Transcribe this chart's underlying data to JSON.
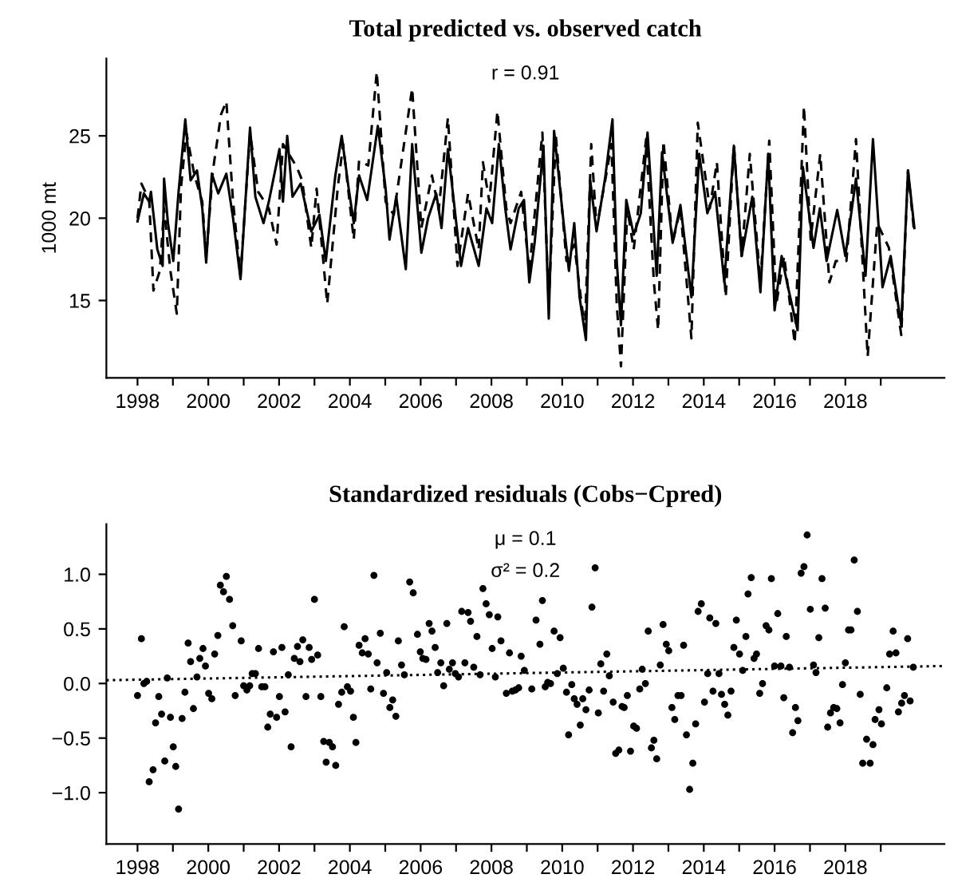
{
  "chart_data": [
    {
      "type": "line",
      "title": "Total predicted vs. observed catch",
      "ylabel": "1000 mt",
      "annotations": [
        "r = 0.91"
      ],
      "xlim": [
        1997.12,
        2020.8
      ],
      "ylim": [
        10.3,
        29.7
      ],
      "xticks": [
        1998,
        {
          "value": 1999,
          "label": null
        },
        2000,
        {
          "value": 2001,
          "label": null
        },
        2002,
        {
          "value": 2003,
          "label": null
        },
        2004,
        {
          "value": 2005,
          "label": null
        },
        2006,
        {
          "value": 2007,
          "label": null
        },
        2008,
        {
          "value": 2009,
          "label": null
        },
        2010,
        {
          "value": 2011,
          "label": null
        },
        2012,
        {
          "value": 2013,
          "label": null
        },
        2014,
        {
          "value": 2015,
          "label": null
        },
        2016,
        {
          "value": 2017,
          "label": null
        },
        2018,
        {
          "value": 2019,
          "label": null
        }
      ],
      "yticks": [
        15,
        20,
        25
      ],
      "series": [
        {
          "color": "#000000",
          "line_style": "solid",
          "x": [
            1998.0,
            1998.18,
            1998.33,
            1998.38,
            1998.56,
            1998.71,
            1998.75,
            1998.86,
            1999.01,
            1999.16,
            1999.35,
            1999.5,
            1999.68,
            1999.83,
            1999.94,
            2000.1,
            2000.28,
            2000.51,
            2000.7,
            2000.91,
            2001.18,
            2001.33,
            2001.56,
            2001.71,
            2002.01,
            2002.11,
            2002.23,
            2002.38,
            2002.61,
            2002.91,
            2003.14,
            2003.32,
            2003.59,
            2003.77,
            2003.96,
            2004.11,
            2004.26,
            2004.49,
            2004.79,
            2005.01,
            2005.12,
            2005.31,
            2005.58,
            2005.76,
            2006.02,
            2006.21,
            2006.44,
            2006.59,
            2006.77,
            2006.96,
            2007.14,
            2007.34,
            2007.64,
            2007.86,
            2008.02,
            2008.21,
            2008.39,
            2008.54,
            2008.77,
            2008.92,
            2009.07,
            2009.22,
            2009.47,
            2009.62,
            2009.77,
            2010.04,
            2010.19,
            2010.34,
            2010.49,
            2010.67,
            2010.79,
            2010.97,
            2011.21,
            2011.42,
            2011.54,
            2011.66,
            2011.81,
            2012.02,
            2012.22,
            2012.41,
            2012.67,
            2012.82,
            2013.12,
            2013.34,
            2013.65,
            2013.87,
            2014.1,
            2014.32,
            2014.58,
            2014.85,
            2015.07,
            2015.37,
            2015.6,
            2015.82,
            2016.0,
            2016.2,
            2016.35,
            2016.65,
            2016.8,
            2017.1,
            2017.28,
            2017.47,
            2017.77,
            2018.0,
            2018.3,
            2018.57,
            2018.78,
            2019.05,
            2019.28,
            2019.58,
            2019.77,
            2019.95
          ],
          "values": [
            19.8,
            21.5,
            21.0,
            21.6,
            18.1,
            17.1,
            22.4,
            19.7,
            17.4,
            21.6,
            26.0,
            22.3,
            22.9,
            20.6,
            17.3,
            22.7,
            21.5,
            22.7,
            20.0,
            16.3,
            25.5,
            21.3,
            19.7,
            21.0,
            24.2,
            21.0,
            25.0,
            21.3,
            22.1,
            19.2,
            20.2,
            17.4,
            22.6,
            25.0,
            21.9,
            19.7,
            22.6,
            21.1,
            25.6,
            21.8,
            18.7,
            21.3,
            16.9,
            24.5,
            17.9,
            20.0,
            21.5,
            19.4,
            24.2,
            20.6,
            17.1,
            19.4,
            17.1,
            20.6,
            19.7,
            24.5,
            20.6,
            18.1,
            20.6,
            21.1,
            16.1,
            18.5,
            24.4,
            13.9,
            25.3,
            19.7,
            16.8,
            19.7,
            15.2,
            12.6,
            22.3,
            19.2,
            22.4,
            26.0,
            17.4,
            13.5,
            21.1,
            19.0,
            20.3,
            25.2,
            16.5,
            24.0,
            18.5,
            20.8,
            15.2,
            23.9,
            20.3,
            21.6,
            16.1,
            24.4,
            17.7,
            21.3,
            15.5,
            23.9,
            14.4,
            17.7,
            16.1,
            13.2,
            23.1,
            18.2,
            20.6,
            17.4,
            20.5,
            17.7,
            22.4,
            16.5,
            24.8,
            15.8,
            17.7,
            13.5,
            22.9,
            19.4
          ]
        },
        {
          "color": "#000000",
          "line_style": "dashed",
          "x": [
            1998.0,
            1998.11,
            1998.33,
            1998.45,
            1998.63,
            1998.75,
            1998.93,
            1999.11,
            1999.23,
            1999.38,
            1999.61,
            1999.83,
            1999.94,
            2000.13,
            2000.36,
            2000.51,
            2000.7,
            2000.91,
            2001.18,
            2001.41,
            2001.71,
            2001.93,
            2002.11,
            2002.5,
            2002.65,
            2002.91,
            2003.06,
            2003.36,
            2003.66,
            2003.81,
            2004.11,
            2004.26,
            2004.52,
            2004.76,
            2005.01,
            2005.24,
            2005.76,
            2006.02,
            2006.32,
            2006.51,
            2006.77,
            2007.04,
            2007.34,
            2007.64,
            2007.76,
            2007.94,
            2008.17,
            2008.42,
            2008.54,
            2008.84,
            2009.07,
            2009.44,
            2009.62,
            2009.82,
            2010.12,
            2010.34,
            2010.64,
            2010.82,
            2010.97,
            2011.24,
            2011.39,
            2011.54,
            2011.66,
            2011.84,
            2012.02,
            2012.37,
            2012.59,
            2012.71,
            2012.86,
            2013.12,
            2013.34,
            2013.65,
            2013.83,
            2014.17,
            2014.37,
            2014.62,
            2014.85,
            2015.07,
            2015.3,
            2015.6,
            2015.85,
            2016.05,
            2016.27,
            2016.57,
            2016.83,
            2017.02,
            2017.29,
            2017.55,
            2017.73,
            2018.03,
            2018.3,
            2018.63,
            2018.9,
            2019.23,
            2019.58,
            2019.77,
            2019.95
          ],
          "values": [
            20.0,
            22.1,
            21.1,
            15.6,
            16.8,
            20.6,
            16.8,
            14.2,
            21.9,
            25.2,
            22.6,
            21.0,
            17.6,
            22.9,
            26.3,
            27.1,
            21.0,
            16.5,
            25.2,
            21.6,
            20.6,
            18.4,
            24.5,
            23.1,
            22.3,
            18.2,
            21.8,
            14.8,
            21.9,
            24.5,
            18.7,
            23.5,
            23.2,
            28.9,
            21.0,
            20.2,
            27.9,
            19.4,
            22.6,
            20.5,
            26.1,
            17.1,
            21.5,
            18.1,
            23.4,
            21.0,
            26.5,
            20.6,
            19.7,
            21.6,
            16.8,
            25.2,
            14.8,
            25.0,
            17.4,
            18.4,
            13.2,
            24.5,
            19.4,
            22.6,
            24.5,
            14.8,
            11.0,
            20.6,
            18.1,
            24.8,
            16.1,
            13.2,
            24.7,
            18.5,
            20.6,
            12.7,
            25.8,
            20.6,
            23.4,
            15.2,
            24.5,
            17.7,
            23.9,
            16.1,
            24.7,
            14.8,
            17.7,
            12.4,
            26.8,
            18.7,
            23.9,
            16.1,
            17.4,
            17.4,
            24.8,
            11.6,
            19.7,
            18.2,
            12.9,
            22.9,
            19.0
          ]
        }
      ]
    },
    {
      "type": "scatter",
      "title": "Standardized residuals (Cobs−Cpred)",
      "annotations": [
        "μ = 0.1",
        "σ² = 0.2"
      ],
      "xlim": [
        1997.12,
        2020.8
      ],
      "ylim": [
        -1.47,
        1.46
      ],
      "xticks": [
        1998,
        {
          "value": 1999,
          "label": null
        },
        2000,
        {
          "value": 2001,
          "label": null
        },
        2002,
        {
          "value": 2003,
          "label": null
        },
        2004,
        {
          "value": 2005,
          "label": null
        },
        2006,
        {
          "value": 2007,
          "label": null
        },
        2008,
        {
          "value": 2009,
          "label": null
        },
        2010,
        {
          "value": 2011,
          "label": null
        },
        2012,
        {
          "value": 2013,
          "label": null
        },
        2014,
        {
          "value": 2015,
          "label": null
        },
        2016,
        {
          "value": 2017,
          "label": null
        },
        2018,
        {
          "value": 2019,
          "label": null
        }
      ],
      "yticks": [
        {
          "value": -1.0,
          "label": "−1.0"
        },
        {
          "value": -0.5,
          "label": "−0.5"
        },
        {
          "value": 0.0,
          "label": "0.0"
        },
        {
          "value": 0.5,
          "label": "0.5"
        },
        {
          "value": 1.0,
          "label": "1.0"
        }
      ],
      "series": [
        {
          "type": "scatter",
          "color": "#000000",
          "marker": "circle",
          "x": [
            1998.0,
            1998.11,
            1998.18,
            1998.26,
            1998.33,
            1998.44,
            1998.51,
            1998.6,
            1998.68,
            1998.77,
            1998.84,
            1998.93,
            1999.01,
            1999.08,
            1999.16,
            1999.26,
            1999.34,
            1999.43,
            1999.5,
            1999.58,
            1999.68,
            1999.76,
            1999.85,
            1999.92,
            2000.01,
            2000.1,
            2000.18,
            2000.27,
            2000.34,
            2000.43,
            2000.51,
            2000.6,
            2000.69,
            2000.76,
            2000.93,
            2001.0,
            2001.09,
            2001.17,
            2001.24,
            2001.33,
            2001.42,
            2001.51,
            2001.6,
            2001.68,
            2001.75,
            2001.84,
            2001.93,
            2002.01,
            2002.08,
            2002.17,
            2002.26,
            2002.34,
            2002.43,
            2002.52,
            2002.59,
            2002.67,
            2002.76,
            2002.85,
            2002.92,
            2003.0,
            2003.09,
            2003.18,
            2003.26,
            2003.33,
            2003.42,
            2003.51,
            2003.6,
            2003.68,
            2003.77,
            2003.84,
            2003.93,
            2004.02,
            2004.1,
            2004.17,
            2004.26,
            2004.35,
            2004.43,
            2004.52,
            2004.59,
            2004.68,
            2004.77,
            2004.86,
            2004.95,
            2005.04,
            2005.13,
            2005.21,
            2005.3,
            2005.37,
            2005.46,
            2005.54,
            2005.69,
            2005.79,
            2005.91,
            2005.99,
            2006.06,
            2006.15,
            2006.24,
            2006.32,
            2006.41,
            2006.48,
            2006.57,
            2006.65,
            2006.74,
            2006.81,
            2006.9,
            2006.98,
            2007.07,
            2007.16,
            2007.25,
            2007.34,
            2007.41,
            2007.5,
            2007.59,
            2007.68,
            2007.76,
            2007.85,
            2007.94,
            2008.02,
            2008.11,
            2008.18,
            2008.27,
            2008.42,
            2008.51,
            2008.59,
            2008.68,
            2008.77,
            2008.84,
            2008.93,
            2009.14,
            2009.26,
            2009.37,
            2009.44,
            2009.52,
            2009.59,
            2009.67,
            2009.77,
            2009.86,
            2009.94,
            2010.03,
            2010.12,
            2010.18,
            2010.27,
            2010.34,
            2010.42,
            2010.51,
            2010.58,
            2010.67,
            2010.76,
            2010.84,
            2010.93,
            2011.02,
            2011.09,
            2011.17,
            2011.26,
            2011.33,
            2011.44,
            2011.51,
            2011.6,
            2011.69,
            2011.75,
            2011.84,
            2011.93,
            2012.02,
            2012.1,
            2012.19,
            2012.26,
            2012.35,
            2012.43,
            2012.52,
            2012.59,
            2012.67,
            2012.77,
            2012.85,
            2012.94,
            2013.01,
            2013.1,
            2013.18,
            2013.27,
            2013.36,
            2013.43,
            2013.51,
            2013.6,
            2013.69,
            2013.77,
            2013.84,
            2013.93,
            2014.02,
            2014.11,
            2014.17,
            2014.26,
            2014.34,
            2014.43,
            2014.5,
            2014.59,
            2014.68,
            2014.77,
            2014.85,
            2014.92,
            2015.01,
            2015.1,
            2015.19,
            2015.25,
            2015.34,
            2015.42,
            2015.49,
            2015.58,
            2015.66,
            2015.76,
            2015.84,
            2015.91,
            2016.0,
            2016.09,
            2016.18,
            2016.26,
            2016.33,
            2016.42,
            2016.51,
            2016.59,
            2016.66,
            2016.75,
            2016.83,
            2016.92,
            2017.01,
            2017.1,
            2017.17,
            2017.25,
            2017.34,
            2017.43,
            2017.5,
            2017.58,
            2017.67,
            2017.76,
            2017.85,
            2017.92,
            2018.0,
            2018.09,
            2018.16,
            2018.25,
            2018.34,
            2018.42,
            2018.49,
            2018.6,
            2018.7,
            2018.78,
            2018.84,
            2018.95,
            2019.02,
            2019.17,
            2019.25,
            2019.35,
            2019.43,
            2019.5,
            2019.59,
            2019.67,
            2019.76,
            2019.83,
            2019.92
          ],
          "values": [
            -0.11,
            0.41,
            0.0,
            0.02,
            -0.9,
            -0.79,
            -0.36,
            -0.12,
            -0.28,
            -0.71,
            0.05,
            -0.31,
            -0.58,
            -0.76,
            -1.15,
            -0.32,
            -0.08,
            0.37,
            0.2,
            -0.23,
            0.06,
            0.23,
            0.32,
            0.16,
            -0.09,
            -0.14,
            0.27,
            0.44,
            0.9,
            0.84,
            0.98,
            0.77,
            0.53,
            -0.11,
            0.39,
            -0.02,
            -0.06,
            -0.02,
            0.09,
            0.09,
            0.32,
            -0.03,
            -0.03,
            -0.4,
            -0.28,
            0.29,
            -0.31,
            -0.12,
            0.33,
            -0.26,
            0.08,
            -0.58,
            0.23,
            0.34,
            0.2,
            0.4,
            -0.12,
            0.33,
            0.22,
            0.77,
            0.26,
            -0.12,
            -0.53,
            -0.72,
            -0.54,
            -0.58,
            -0.75,
            -0.19,
            -0.08,
            0.52,
            -0.03,
            -0.07,
            -0.31,
            -0.54,
            0.35,
            0.28,
            0.41,
            0.27,
            -0.05,
            0.99,
            0.19,
            0.46,
            -0.09,
            0.1,
            -0.22,
            -0.15,
            -0.3,
            0.39,
            0.17,
            0.08,
            0.93,
            0.83,
            0.45,
            0.29,
            0.23,
            0.22,
            0.55,
            0.48,
            0.33,
            0.1,
            0.19,
            -0.02,
            0.55,
            0.13,
            0.19,
            0.09,
            0.06,
            0.66,
            0.19,
            0.65,
            0.57,
            0.15,
            0.43,
            0.08,
            0.87,
            0.73,
            0.63,
            0.32,
            0.06,
            0.61,
            0.39,
            -0.09,
            0.28,
            -0.07,
            -0.06,
            -0.04,
            0.25,
            0.12,
            -0.05,
            0.58,
            0.36,
            0.76,
            -0.03,
            0.01,
            0.0,
            0.48,
            0.09,
            0.42,
            0.14,
            -0.08,
            -0.47,
            -0.01,
            -0.14,
            -0.19,
            -0.38,
            -0.14,
            -0.24,
            -0.06,
            0.7,
            1.06,
            -0.27,
            0.18,
            -0.07,
            0.27,
            0.07,
            -0.17,
            -0.64,
            -0.61,
            -0.21,
            -0.22,
            -0.11,
            -0.62,
            -0.39,
            -0.41,
            -0.05,
            0.13,
            0.0,
            0.48,
            -0.59,
            -0.52,
            -0.69,
            0.17,
            0.54,
            0.36,
            0.3,
            -0.22,
            -0.33,
            -0.11,
            -0.11,
            0.35,
            -0.47,
            -0.97,
            -0.73,
            -0.37,
            0.66,
            0.73,
            -0.17,
            0.09,
            0.6,
            -0.07,
            0.55,
            0.09,
            -0.1,
            -0.19,
            -0.29,
            -0.07,
            0.33,
            0.58,
            0.27,
            0.12,
            0.43,
            0.82,
            0.97,
            0.23,
            0.27,
            -0.09,
            0.0,
            0.53,
            0.49,
            0.96,
            0.16,
            0.64,
            0.16,
            -0.13,
            0.43,
            0.15,
            -0.45,
            -0.22,
            -0.34,
            1.01,
            1.07,
            1.36,
            0.68,
            0.17,
            0.1,
            0.42,
            0.96,
            0.69,
            -0.4,
            -0.27,
            -0.22,
            -0.23,
            -0.36,
            -0.01,
            0.19,
            0.49,
            0.49,
            1.13,
            0.66,
            -0.1,
            -0.73,
            -0.51,
            -0.73,
            -0.56,
            -0.33,
            -0.24,
            -0.37,
            -0.04,
            0.27,
            0.48,
            0.28,
            -0.26,
            -0.18,
            -0.11,
            0.41,
            -0.16,
            0.15
          ]
        },
        {
          "type": "line",
          "color": "#000000",
          "line_style": "dotted",
          "x": [
            1997.12,
            2020.8
          ],
          "values": [
            0.03,
            0.16
          ]
        }
      ]
    }
  ]
}
